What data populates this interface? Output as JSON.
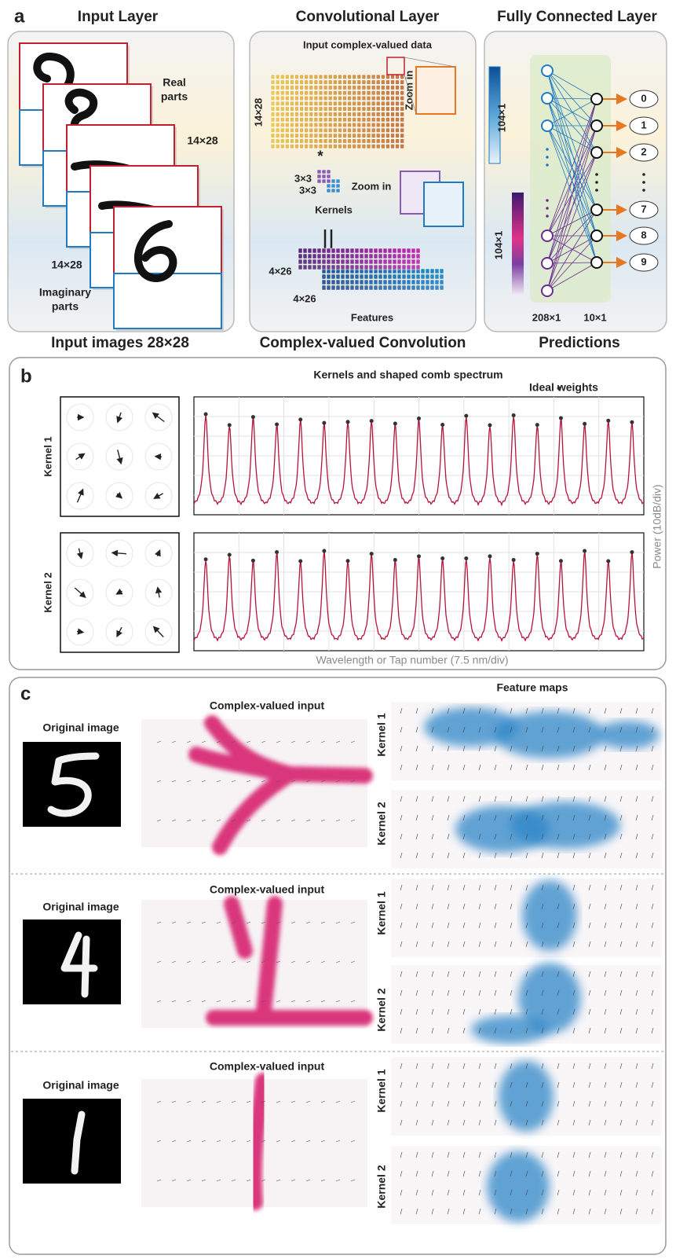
{
  "panel_a": {
    "label": "a",
    "input_layer": {
      "title": "Input Layer",
      "real_parts": [
        "Real",
        "parts"
      ],
      "real_size": "14×28",
      "imag_size": "14×28",
      "imaginary_parts": [
        "Imaginary",
        "parts"
      ],
      "caption": "Input images 28×28"
    },
    "conv_layer": {
      "title": "Convolutional Layer",
      "input_label": "Input complex-valued data",
      "input_size": "14×28",
      "zoom_in_1": "Zoom in",
      "operator": "*",
      "kernel_sizes": [
        "3×3",
        "3×3"
      ],
      "kernels_label": "Kernels",
      "zoom_in_2": "Zoom in",
      "feature_sizes": [
        "4×26",
        "4×26"
      ],
      "features_label": "Features",
      "caption": "Complex-valued Convolution"
    },
    "fc_layer": {
      "title": "Fully Connected Layer",
      "real_size": "104×1",
      "imag_size": "104×1",
      "outputs": [
        "0",
        "1",
        "2",
        "7",
        "8",
        "9"
      ],
      "input_nodes": "208×1",
      "output_nodes": "10×1",
      "caption": "Predictions"
    }
  },
  "panel_b": {
    "label": "b",
    "title": "Kernels and shaped comb spectrum",
    "legend": "Ideal weights",
    "kernels": [
      "Kernel 1",
      "Kernel 2"
    ],
    "y_label": "Power (10dB/div)",
    "x_label": "Wavelength or Tap number (7.5 nm/div)"
  },
  "panel_c": {
    "label": "c",
    "feature_maps": "Feature maps",
    "rows": [
      {
        "original": "Original image",
        "input": "Complex-valued input",
        "kernels": [
          "Kernel 1",
          "Kernel 2"
        ]
      },
      {
        "original": "Original image",
        "input": "Complex-valued input",
        "kernels": [
          "Kernel 1",
          "Kernel 2"
        ]
      },
      {
        "original": "Original image",
        "input": "Complex-valued input",
        "kernels": [
          "Kernel 1",
          "Kernel 2"
        ]
      }
    ]
  }
}
